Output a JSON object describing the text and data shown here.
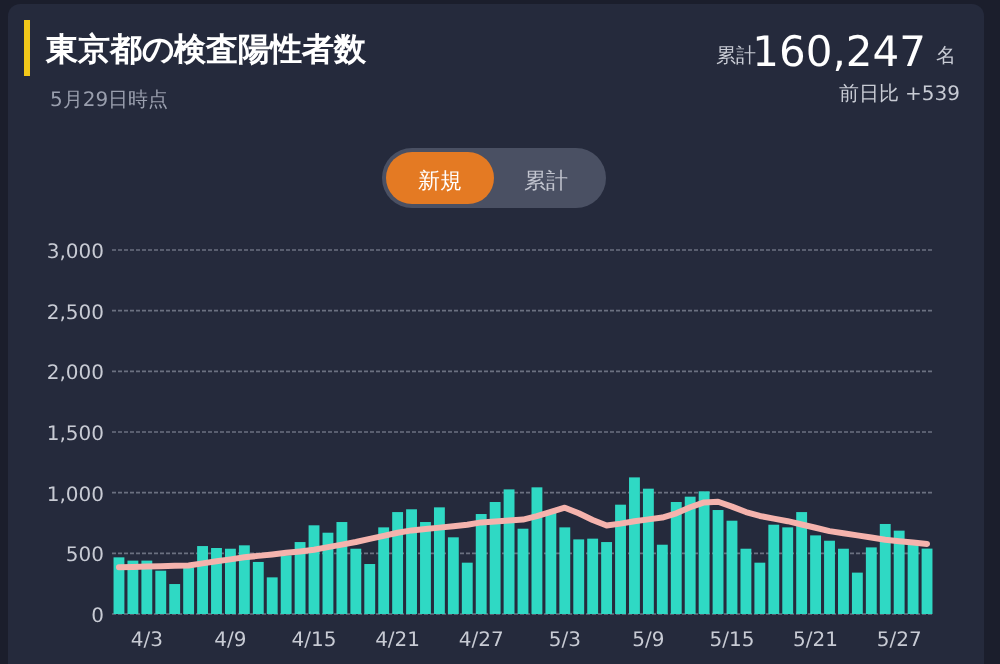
{
  "chart_data": {
    "type": "bar",
    "title": "東京都の検査陽性者数",
    "subtitle": "5月29日時点",
    "annotations": [
      "累計",
      "160,247",
      "名",
      "前日比 +539",
      "新規",
      "累計"
    ],
    "categories": [
      null,
      null,
      "4/3",
      null,
      null,
      null,
      null,
      null,
      "4/9",
      null,
      null,
      null,
      null,
      null,
      "4/15",
      null,
      null,
      null,
      null,
      null,
      "4/21",
      null,
      null,
      null,
      null,
      null,
      "4/27",
      null,
      null,
      null,
      null,
      null,
      "5/3",
      null,
      null,
      null,
      null,
      null,
      "5/9",
      null,
      null,
      null,
      null,
      null,
      "5/15",
      null,
      null,
      null,
      null,
      null,
      "5/21",
      null,
      null,
      null,
      null,
      null,
      "5/27",
      null,
      null
    ],
    "series": [
      {
        "color": "#2fd9c4",
        "values": [
          467,
          440,
          440,
          357,
          247,
          385,
          560,
          544,
          538,
          566,
          429,
          302,
          484,
          593,
          731,
          670,
          758,
          538,
          412,
          714,
          840,
          863,
          758,
          879,
          632,
          423,
          824,
          923,
          1027,
          703,
          1044,
          835,
          714,
          615,
          621,
          593,
          901,
          1126,
          1033,
          571,
          923,
          967,
          1011,
          857,
          769,
          538,
          423,
          736,
          714,
          840,
          648,
          604,
          538,
          341,
          549,
          742,
          687,
          600,
          539
        ]
      },
      {
        "type": "line",
        "color": "#f5b3ad",
        "values": [
          385,
          388,
          391,
          394,
          397,
          400,
          417,
          434,
          450,
          467,
          479,
          491,
          504,
          516,
          530,
          551,
          572,
          593,
          619,
          644,
          670,
          689,
          700,
          712,
          723,
          735,
          755,
          762,
          770,
          778,
          806,
          842,
          876,
          830,
          775,
          730,
          745,
          765,
          780,
          795,
          830,
          880,
          920,
          925,
          885,
          840,
          808,
          786,
          765,
          738,
          711,
          683,
          665,
          648,
          630,
          612,
          600,
          590,
          577
        ]
      }
    ],
    "ylim": [
      0,
      3000
    ],
    "yticks": [
      0,
      500,
      {
        "value": 1000,
        "label": "1,000"
      },
      {
        "value": 1500,
        "label": "1,500"
      },
      {
        "value": 2000,
        "label": "2,000"
      },
      {
        "value": 2500,
        "label": "2,500"
      },
      {
        "value": 3000,
        "label": "3,000"
      }
    ],
    "grid": "y"
  }
}
